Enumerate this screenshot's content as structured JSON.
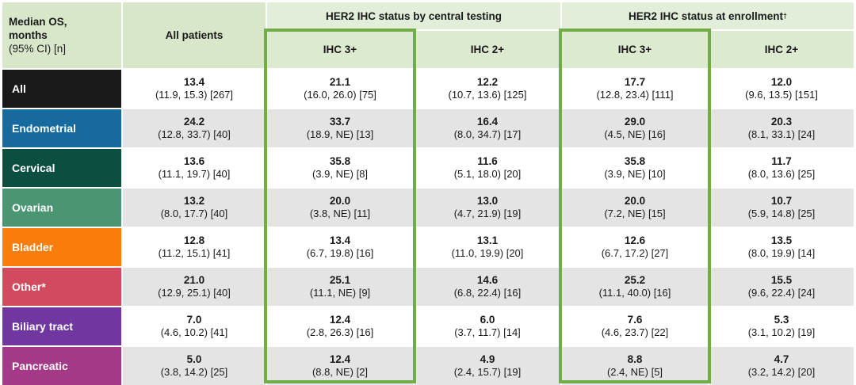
{
  "chart_data": {
    "type": "table",
    "corner": {
      "line1": "Median OS,",
      "line2": "months",
      "line3": "(95% CI) [n]"
    },
    "col_all_patients": "All patients",
    "group_central": "HER2 IHC status by central testing",
    "group_enrollment": "HER2 IHC status at enrollment",
    "group_enrollment_sup": "†",
    "subheaders": {
      "central_ihc3": "IHC 3+",
      "central_ihc2": "IHC 2+",
      "enroll_ihc3": "IHC 3+",
      "enroll_ihc2": "IHC 2+"
    },
    "highlight_color": "#70ad47",
    "rows": [
      {
        "label": "All",
        "label_color": "#1a1a1a",
        "cells": [
          {
            "value": "13.4",
            "ci": "(11.9, 15.3) [267]"
          },
          {
            "value": "21.1",
            "ci": "(16.0, 26.0) [75]"
          },
          {
            "value": "12.2",
            "ci": "(10.7, 13.6) [125]"
          },
          {
            "value": "17.7",
            "ci": "(12.8, 23.4) [111]"
          },
          {
            "value": "12.0",
            "ci": "(9.6, 13.5) [151]"
          }
        ]
      },
      {
        "label": "Endometrial",
        "label_color": "#176a9e",
        "cells": [
          {
            "value": "24.2",
            "ci": "(12.8, 33.7) [40]"
          },
          {
            "value": "33.7",
            "ci": "(18.9, NE) [13]"
          },
          {
            "value": "16.4",
            "ci": "(8.0, 34.7) [17]"
          },
          {
            "value": "29.0",
            "ci": "(4.5, NE) [16]"
          },
          {
            "value": "20.3",
            "ci": "(8.1, 33.1) [24]"
          }
        ]
      },
      {
        "label": "Cervical",
        "label_color": "#0c4f40",
        "cells": [
          {
            "value": "13.6",
            "ci": "(11.1, 19.7) [40]"
          },
          {
            "value": "35.8",
            "ci": "(3.9, NE) [8]"
          },
          {
            "value": "11.6",
            "ci": "(5.1, 18.0) [20]"
          },
          {
            "value": "35.8",
            "ci": "(3.9, NE) [10]"
          },
          {
            "value": "11.7",
            "ci": "(8.0, 13.6) [25]"
          }
        ]
      },
      {
        "label": "Ovarian",
        "label_color": "#4a9572",
        "cells": [
          {
            "value": "13.2",
            "ci": "(8.0, 17.7) [40]"
          },
          {
            "value": "20.0",
            "ci": "(3.8, NE) [11]"
          },
          {
            "value": "13.0",
            "ci": "(4.7, 21.9) [19]"
          },
          {
            "value": "20.0",
            "ci": "(7.2, NE) [15]"
          },
          {
            "value": "10.7",
            "ci": "(5.9, 14.8) [25]"
          }
        ]
      },
      {
        "label": "Bladder",
        "label_color": "#f97d0b",
        "cells": [
          {
            "value": "12.8",
            "ci": "(11.2, 15.1) [41]"
          },
          {
            "value": "13.4",
            "ci": "(6.7, 19.8) [16]"
          },
          {
            "value": "13.1",
            "ci": "(11.0, 19.9) [20]"
          },
          {
            "value": "12.6",
            "ci": "(6.7, 17.2) [27]"
          },
          {
            "value": "13.5",
            "ci": "(8.0, 19.9) [14]"
          }
        ]
      },
      {
        "label": "Other*",
        "label_color": "#d14a5e",
        "cells": [
          {
            "value": "21.0",
            "ci": "(12.9, 25.1) [40]"
          },
          {
            "value": "25.1",
            "ci": "(11.1, NE) [9]"
          },
          {
            "value": "14.6",
            "ci": "(6.8, 22.4) [16]"
          },
          {
            "value": "25.2",
            "ci": "(11.1, 40.0) [16]"
          },
          {
            "value": "15.5",
            "ci": "(9.6, 22.4) [24]"
          }
        ]
      },
      {
        "label": "Biliary tract",
        "label_color": "#7137a0",
        "cells": [
          {
            "value": "7.0",
            "ci": "(4.6, 10.2) [41]"
          },
          {
            "value": "12.4",
            "ci": "(2.8, 26.3) [16]"
          },
          {
            "value": "6.0",
            "ci": "(3.7, 11.7) [14]"
          },
          {
            "value": "7.6",
            "ci": "(4.6, 23.7) [22]"
          },
          {
            "value": "5.3",
            "ci": "(3.1, 10.2) [19]"
          }
        ]
      },
      {
        "label": "Pancreatic",
        "label_color": "#a43a87",
        "cells": [
          {
            "value": "5.0",
            "ci": "(3.8, 14.2) [25]"
          },
          {
            "value": "12.4",
            "ci": "(8.8, NE) [2]"
          },
          {
            "value": "4.9",
            "ci": "(2.4, 15.7) [19]"
          },
          {
            "value": "8.8",
            "ci": "(2.4, NE) [5]"
          },
          {
            "value": "4.7",
            "ci": "(3.2, 14.2) [20]"
          }
        ]
      }
    ]
  }
}
